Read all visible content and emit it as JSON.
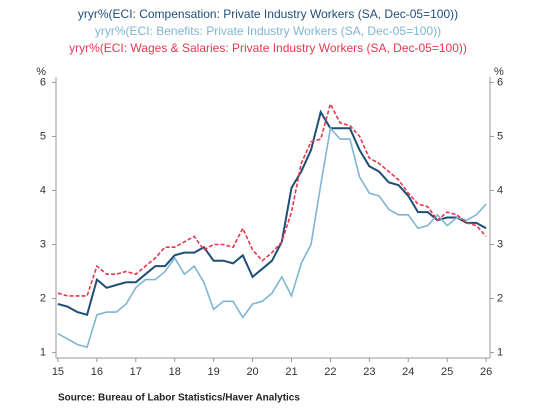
{
  "chart_data": {
    "type": "line",
    "source": "Source:  Bureau of Labor Statistics/Haver Analytics",
    "y_label": "%",
    "y2_label": "%",
    "x": [
      15,
      15.25,
      15.5,
      15.75,
      16,
      16.25,
      16.5,
      16.75,
      17,
      17.25,
      17.5,
      17.75,
      18,
      18.25,
      18.5,
      18.75,
      19,
      19.25,
      19.5,
      19.75,
      20,
      20.25,
      20.5,
      20.75,
      21,
      21.25,
      21.5,
      21.75,
      22,
      22.25,
      22.5,
      22.75,
      23,
      23.25,
      23.5,
      23.75,
      24,
      24.25,
      24.5,
      24.75,
      25,
      25.25,
      25.5,
      25.75,
      26
    ],
    "series": [
      {
        "name": "yryr%(ECI: Compensation: Private Industry Workers (SA, Dec-05=100))",
        "color": "#1f4e79",
        "style": "solid",
        "values": [
          1.9,
          1.85,
          1.75,
          1.7,
          2.35,
          2.2,
          2.25,
          2.3,
          2.3,
          2.45,
          2.6,
          2.6,
          2.8,
          2.85,
          2.85,
          2.95,
          2.7,
          2.7,
          2.65,
          2.8,
          2.4,
          2.55,
          2.7,
          3.05,
          4.05,
          4.35,
          4.75,
          5.45,
          5.15,
          5.15,
          5.15,
          4.75,
          4.45,
          4.35,
          4.15,
          4.1,
          3.9,
          3.6,
          3.6,
          3.45,
          3.5,
          3.5,
          3.4,
          3.4,
          3.3
        ]
      },
      {
        "name": "yryr%(ECI: Benefits: Private Industry Workers (SA, Dec-05=100))",
        "color": "#7fb6d2",
        "style": "solid",
        "values": [
          1.35,
          1.25,
          1.15,
          1.1,
          1.7,
          1.75,
          1.75,
          1.9,
          2.2,
          2.35,
          2.35,
          2.5,
          2.75,
          2.45,
          2.6,
          2.3,
          1.8,
          1.95,
          1.95,
          1.65,
          1.9,
          1.95,
          2.1,
          2.4,
          2.05,
          2.65,
          3.0,
          4.1,
          5.15,
          4.95,
          4.95,
          4.25,
          3.95,
          3.9,
          3.65,
          3.55,
          3.55,
          3.3,
          3.35,
          3.55,
          3.35,
          3.5,
          3.45,
          3.55,
          3.75
        ]
      },
      {
        "name": "yryr%(ECI: Wages & Salaries: Private Industry Workers (SA, Dec-05=100))",
        "color": "#e8384f",
        "style": "dashed",
        "values": [
          2.1,
          2.05,
          2.05,
          2.05,
          2.6,
          2.45,
          2.45,
          2.5,
          2.45,
          2.6,
          2.75,
          2.95,
          2.95,
          3.05,
          3.15,
          2.9,
          3.0,
          3.0,
          2.95,
          3.3,
          2.9,
          2.7,
          2.85,
          3.05,
          3.6,
          4.5,
          4.9,
          4.95,
          5.6,
          5.25,
          5.2,
          5.0,
          4.6,
          4.5,
          4.35,
          4.2,
          3.95,
          3.75,
          3.7,
          3.45,
          3.6,
          3.55,
          3.4,
          3.35,
          3.15
        ]
      }
    ],
    "xlim": [
      14.95,
      26.1
    ],
    "xticks": [
      15,
      16,
      17,
      18,
      19,
      20,
      21,
      22,
      23,
      24,
      25,
      26
    ],
    "ylim": [
      0.9,
      6.1
    ],
    "yticks": [
      1,
      2,
      3,
      4,
      5,
      6
    ],
    "y2lim": [
      0.9,
      6.1
    ],
    "y2ticks": [
      1,
      2,
      3,
      4,
      5,
      6
    ],
    "grid": false
  }
}
